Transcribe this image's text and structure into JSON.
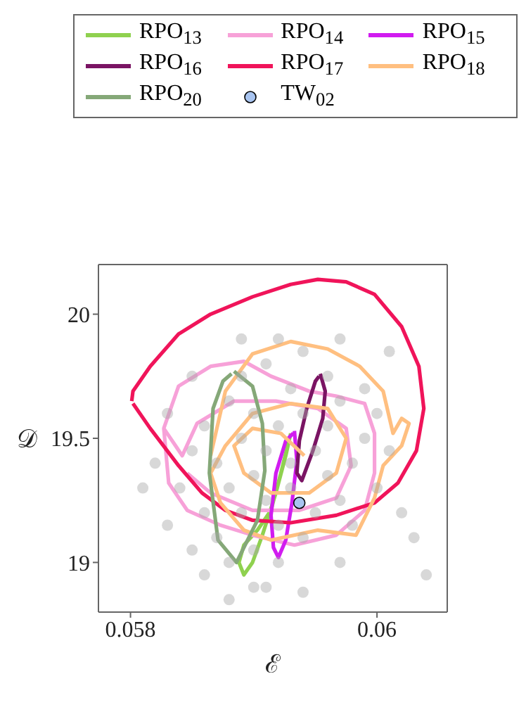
{
  "chart_data": {
    "type": "line",
    "xlabel": "ℰ",
    "ylabel": "𝒟",
    "xlim": [
      0.05774,
      0.06057
    ],
    "ylim": [
      18.8,
      20.2
    ],
    "xticks": [
      0.058,
      0.06
    ],
    "yticks": [
      19,
      19.5,
      20
    ],
    "grid": false,
    "legend": "top",
    "line_style": "solid",
    "series": [
      {
        "type": "scatter",
        "color": "#a8a8a8",
        "marker": "circle",
        "x": [
          0.0584,
          0.0585,
          0.0586,
          0.0586,
          0.0587,
          0.0587,
          0.0588,
          0.0588,
          0.0588,
          0.0589,
          0.0589,
          0.0589,
          0.059,
          0.059,
          0.059,
          0.059,
          0.0591,
          0.0591,
          0.0591,
          0.0592,
          0.0592,
          0.0592,
          0.0593,
          0.0593,
          0.0593,
          0.0594,
          0.0594,
          0.0594,
          0.0595,
          0.0595,
          0.0596,
          0.0596,
          0.0596,
          0.0597,
          0.0597,
          0.0598,
          0.0598,
          0.0599,
          0.0599,
          0.06,
          0.06,
          0.0601,
          0.0601,
          0.0602,
          0.0583,
          0.0582,
          0.0581,
          0.0585,
          0.0586,
          0.0588,
          0.0591,
          0.0594,
          0.0597,
          0.0603,
          0.0604,
          0.0589,
          0.0592,
          0.0597,
          0.0585,
          0.0583
        ],
        "values": [
          19.3,
          19.45,
          19.2,
          19.55,
          19.1,
          19.4,
          19.65,
          19.3,
          19.0,
          19.5,
          19.2,
          19.75,
          19.35,
          19.6,
          19.05,
          18.9,
          19.45,
          19.25,
          19.8,
          19.55,
          19.15,
          19.0,
          19.4,
          19.7,
          19.3,
          19.6,
          19.1,
          19.85,
          19.45,
          19.2,
          19.55,
          19.35,
          19.75,
          19.25,
          19.65,
          19.4,
          19.15,
          19.5,
          19.7,
          19.3,
          19.6,
          19.45,
          19.85,
          19.2,
          19.6,
          19.4,
          19.3,
          19.05,
          18.95,
          18.85,
          18.9,
          18.88,
          19.0,
          19.1,
          18.95,
          19.9,
          19.9,
          19.9,
          19.75,
          19.15
        ]
      },
      {
        "name": "RPO$_{13}$",
        "color": "#8fd14f",
        "x": [
          0.0593,
          0.05926,
          0.05918,
          0.05907,
          0.05899,
          0.05892,
          0.05888,
          0.05892,
          0.05903,
          0.05914,
          0.05922,
          0.05929
        ],
        "values": [
          19.52,
          19.43,
          19.28,
          19.11,
          19.0,
          18.95,
          19.0,
          19.07,
          19.13,
          19.21,
          19.36,
          19.5
        ]
      },
      {
        "name": "RPO$_{14}$",
        "color": "#f7a1d8",
        "x": [
          0.05827,
          0.05839,
          0.05865,
          0.05892,
          0.05914,
          0.05945,
          0.05967,
          0.0599,
          0.05998,
          0.05998,
          0.0599,
          0.05967,
          0.05933,
          0.05899,
          0.05873,
          0.05846,
          0.05831,
          0.05827,
          0.05842,
          0.05854,
          0.05884,
          0.05918,
          0.05952,
          0.05975,
          0.05979,
          0.05967,
          0.05937,
          0.05899,
          0.05865,
          0.05846
        ],
        "values": [
          19.54,
          19.71,
          19.79,
          19.81,
          19.75,
          19.69,
          19.67,
          19.64,
          19.52,
          19.36,
          19.21,
          19.11,
          19.07,
          19.11,
          19.15,
          19.21,
          19.32,
          19.54,
          19.43,
          19.56,
          19.65,
          19.65,
          19.62,
          19.54,
          19.39,
          19.26,
          19.21,
          19.21,
          19.28,
          19.36
        ]
      },
      {
        "name": "RPO$_{15}$",
        "color": "#d11cf0",
        "x": [
          0.05933,
          0.05935,
          0.05931,
          0.05926,
          0.0592,
          0.05916,
          0.05914,
          0.05918,
          0.05926,
          0.05932
        ],
        "values": [
          19.53,
          19.41,
          19.24,
          19.09,
          19.02,
          19.06,
          19.19,
          19.36,
          19.49,
          19.52
        ]
      },
      {
        "name": "RPO$_{16}$",
        "color": "#7a1463",
        "x": [
          0.05954,
          0.05958,
          0.05956,
          0.05948,
          0.05939,
          0.05935,
          0.05937,
          0.05943,
          0.0595,
          0.05953
        ],
        "values": [
          19.76,
          19.69,
          19.58,
          19.45,
          19.33,
          19.36,
          19.49,
          19.62,
          19.73,
          19.75
        ]
      },
      {
        "name": "RPO$_{17}$",
        "color": "#f0145a",
        "x": [
          0.05801,
          0.05802,
          0.05816,
          0.05839,
          0.05865,
          0.05899,
          0.0593,
          0.05952,
          0.05975,
          0.05998,
          0.0602,
          0.06034,
          0.06038,
          0.06032,
          0.06017,
          0.05998,
          0.05967,
          0.0593,
          0.05899,
          0.05877,
          0.05858,
          0.05839,
          0.05816,
          0.05802
        ],
        "values": [
          19.65,
          19.69,
          19.79,
          19.92,
          20.0,
          20.07,
          20.12,
          20.14,
          20.13,
          20.08,
          19.95,
          19.79,
          19.62,
          19.45,
          19.32,
          19.24,
          19.19,
          19.16,
          19.17,
          19.21,
          19.28,
          19.39,
          19.54,
          19.64
        ]
      },
      {
        "name": "RPO$_{18}$",
        "color": "#ffbf80",
        "x": [
          0.05865,
          0.05877,
          0.05899,
          0.0593,
          0.0596,
          0.05986,
          0.06005,
          0.06013,
          0.0602,
          0.06026,
          0.0602,
          0.06005,
          0.05998,
          0.05983,
          0.05952,
          0.05914,
          0.05892,
          0.05873,
          0.05865,
          0.05877,
          0.05899,
          0.0593,
          0.0596,
          0.05975,
          0.05967,
          0.05945,
          0.05914,
          0.05892,
          0.05884,
          0.05899,
          0.05922,
          0.05941
        ],
        "values": [
          19.43,
          19.69,
          19.84,
          19.89,
          19.86,
          19.79,
          19.69,
          19.52,
          19.58,
          19.56,
          19.47,
          19.39,
          19.26,
          19.11,
          19.13,
          19.09,
          19.13,
          19.24,
          19.36,
          19.47,
          19.6,
          19.64,
          19.62,
          19.5,
          19.36,
          19.28,
          19.28,
          19.36,
          19.47,
          19.54,
          19.52,
          19.43
        ]
      },
      {
        "name": "RPO$_{20}$",
        "color": "#85a878",
        "x": [
          0.05884,
          0.05899,
          0.05907,
          0.05909,
          0.05903,
          0.05886,
          0.05871,
          0.05864,
          0.05867,
          0.05875,
          0.05882
        ],
        "values": [
          19.77,
          19.71,
          19.56,
          19.37,
          19.17,
          19.0,
          19.09,
          19.36,
          19.62,
          19.73,
          19.76
        ]
      },
      {
        "name": "TW$_{02}$",
        "type": "scatter",
        "marker": "circle",
        "color": "#a8c4f0",
        "x": [
          0.05937
        ],
        "values": [
          19.24
        ]
      }
    ]
  }
}
